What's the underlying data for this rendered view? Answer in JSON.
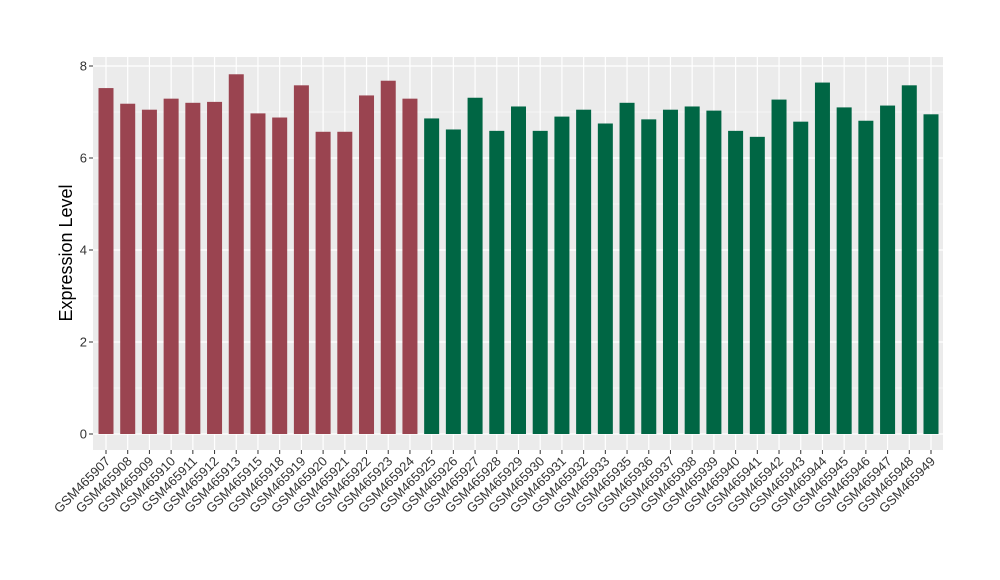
{
  "chart_data": {
    "type": "bar",
    "title": "",
    "xlabel": "",
    "ylabel": "Expression Level",
    "ylim": [
      0,
      8
    ],
    "yticks": [
      0,
      2,
      4,
      6,
      8
    ],
    "grid": true,
    "legend": "none",
    "colors": {
      "group1": "#9a4450",
      "group2": "#006644",
      "panel": "#ebebeb",
      "grid": "#ffffff"
    },
    "categories": [
      "GSM465907",
      "GSM465908",
      "GSM465909",
      "GSM465910",
      "GSM465911",
      "GSM465912",
      "GSM465913",
      "GSM465915",
      "GSM465918",
      "GSM465919",
      "GSM465920",
      "GSM465921",
      "GSM465922",
      "GSM465923",
      "GSM465924",
      "GSM465925",
      "GSM465926",
      "GSM465927",
      "GSM465928",
      "GSM465929",
      "GSM465930",
      "GSM465931",
      "GSM465932",
      "GSM465933",
      "GSM465935",
      "GSM465936",
      "GSM465937",
      "GSM465938",
      "GSM465939",
      "GSM465940",
      "GSM465941",
      "GSM465942",
      "GSM465943",
      "GSM465944",
      "GSM465945",
      "GSM465946",
      "GSM465947",
      "GSM465948",
      "GSM465949"
    ],
    "values": [
      7.52,
      7.18,
      7.05,
      7.29,
      7.2,
      7.22,
      7.82,
      6.97,
      6.88,
      7.58,
      6.57,
      6.57,
      7.36,
      7.68,
      7.29,
      6.86,
      6.62,
      7.31,
      6.59,
      7.12,
      6.59,
      6.9,
      7.05,
      6.75,
      7.2,
      6.84,
      7.05,
      7.12,
      7.03,
      6.59,
      6.46,
      7.27,
      6.79,
      7.64,
      7.1,
      6.81,
      7.14,
      7.58,
      6.95
    ],
    "groups": [
      1,
      1,
      1,
      1,
      1,
      1,
      1,
      1,
      1,
      1,
      1,
      1,
      1,
      1,
      1,
      2,
      2,
      2,
      2,
      2,
      2,
      2,
      2,
      2,
      2,
      2,
      2,
      2,
      2,
      2,
      2,
      2,
      2,
      2,
      2,
      2,
      2,
      2,
      2
    ]
  }
}
